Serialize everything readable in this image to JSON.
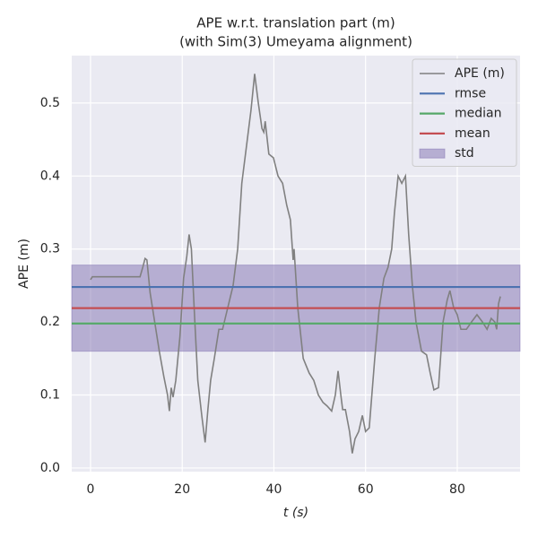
{
  "chart_data": {
    "type": "line",
    "title": [
      "APE w.r.t. translation part (m)",
      "(with Sim(3) Umeyama alignment)"
    ],
    "xlabel": "t (s)",
    "ylabel": "APE (m)",
    "xlim": [
      -4.1,
      93.7
    ],
    "ylim": [
      -0.005,
      0.565
    ],
    "xticks": [
      0,
      20,
      40,
      60,
      80
    ],
    "yticks": [
      {
        "value": 0,
        "label": "0.0"
      },
      0.1,
      0.2,
      0.3,
      0.4,
      0.5
    ],
    "grid": true,
    "legend": "upper right",
    "series": [
      {
        "name": "APE (m)",
        "color": "#808080",
        "x": [
          0,
          0.4,
          10,
          10.8,
          11.4,
          11.9,
          12.3,
          13,
          14,
          15,
          16,
          16.8,
          17.2,
          17.6,
          18,
          18.6,
          19.5,
          20.3,
          21,
          21.5,
          22,
          22.6,
          23.4,
          24.3,
          25,
          25.6,
          26.2,
          27,
          27.5,
          28,
          28.8,
          31.1,
          32.1,
          33,
          34,
          35,
          35.8,
          36.6,
          37.4,
          37.8,
          38.1,
          38.9,
          39.9,
          40.9,
          41.9,
          42.8,
          43.6,
          44.2,
          44.4,
          45.2,
          46.4,
          47.7,
          48.7,
          49.7,
          50.7,
          51.6,
          52.6,
          53.4,
          54,
          54.6,
          55,
          55.6,
          56.5,
          57.1,
          57.7,
          58.5,
          59.3,
          60,
          60.8,
          62,
          63,
          64,
          64.9,
          65.7,
          66.3,
          67.1,
          67.9,
          68.7,
          69.4,
          70.2,
          71,
          72.2,
          73.3,
          74.1,
          74.9,
          75.9,
          76.9,
          77.8,
          78.4,
          79.2,
          80,
          80.8,
          82,
          83.1,
          84.3,
          85.5,
          86.5,
          87.4,
          88.2,
          88.6,
          89,
          89.4
        ],
        "values": [
          0.258,
          0.262,
          0.262,
          0.262,
          0.275,
          0.287,
          0.285,
          0.24,
          0.2,
          0.16,
          0.125,
          0.1,
          0.078,
          0.11,
          0.097,
          0.12,
          0.18,
          0.26,
          0.29,
          0.32,
          0.3,
          0.22,
          0.12,
          0.07,
          0.035,
          0.08,
          0.12,
          0.15,
          0.17,
          0.19,
          0.19,
          0.25,
          0.3,
          0.39,
          0.44,
          0.49,
          0.54,
          0.5,
          0.465,
          0.46,
          0.475,
          0.43,
          0.425,
          0.4,
          0.39,
          0.36,
          0.34,
          0.285,
          0.3,
          0.22,
          0.15,
          0.13,
          0.12,
          0.1,
          0.09,
          0.085,
          0.078,
          0.1,
          0.133,
          0.1,
          0.08,
          0.08,
          0.05,
          0.02,
          0.04,
          0.05,
          0.072,
          0.05,
          0.055,
          0.15,
          0.22,
          0.26,
          0.275,
          0.3,
          0.35,
          0.4,
          0.39,
          0.4,
          0.32,
          0.25,
          0.2,
          0.16,
          0.155,
          0.13,
          0.107,
          0.11,
          0.2,
          0.23,
          0.243,
          0.22,
          0.21,
          0.19,
          0.19,
          0.2,
          0.21,
          0.2,
          0.19,
          0.205,
          0.2,
          0.19,
          0.225,
          0.235
        ]
      }
    ],
    "stats": [
      {
        "name": "rmse",
        "color": "#4c72b0",
        "value": 0.248
      },
      {
        "name": "median",
        "color": "#55a868",
        "value": 0.198
      },
      {
        "name": "mean",
        "color": "#c44e52",
        "value": 0.219
      }
    ],
    "std": {
      "name": "std",
      "color": "#8172b2",
      "value": 0.059
    }
  }
}
